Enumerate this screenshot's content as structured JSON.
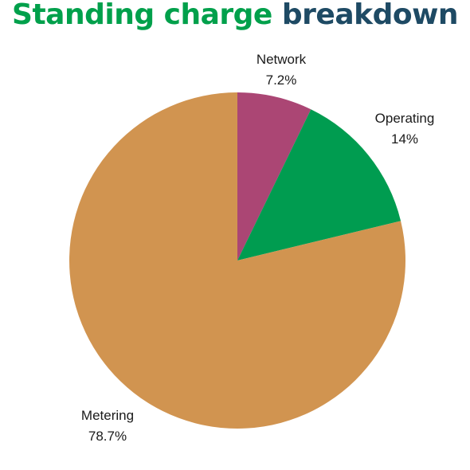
{
  "title": {
    "part1": "Standing charge",
    "part2": "breakdown",
    "color_part1": "#00a04b",
    "color_part2": "#1e4a64"
  },
  "chart_data": {
    "type": "pie",
    "title": "Standing charge breakdown",
    "start_angle_deg": 0,
    "direction": "clockwise",
    "slices": [
      {
        "label": "Network",
        "value_text": "7.2%",
        "value": 7.2,
        "color": "#ab4674"
      },
      {
        "label": "Operating",
        "value_text": "14%",
        "value": 14.0,
        "color": "#009c50"
      },
      {
        "label": "Metering",
        "value_text": "78.7%",
        "value": 78.7,
        "color": "#d19450"
      }
    ]
  }
}
